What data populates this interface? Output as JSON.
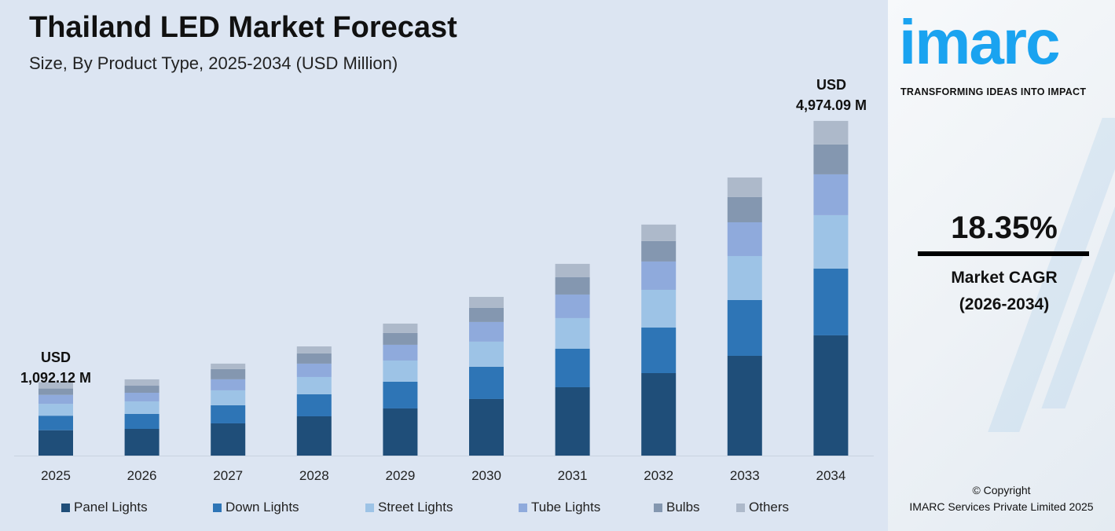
{
  "header": {
    "title": "Thailand LED Market Forecast",
    "subtitle": "Size, By Product Type, 2025-2034 (USD Million)"
  },
  "chart_data": {
    "type": "bar",
    "stacked": true,
    "title": "Thailand LED Market Forecast",
    "subtitle": "Size, By Product Type, 2025-2034 (USD Million)",
    "categories": [
      "2025",
      "2026",
      "2027",
      "2028",
      "2029",
      "2030",
      "2031",
      "2032",
      "2033",
      "2034"
    ],
    "series": [
      {
        "name": "Panel Lights",
        "color": "#1f4e79",
        "values": [
          377,
          397,
          479,
          584,
          701,
          841,
          1016,
          1226,
          1483,
          1787
        ]
      },
      {
        "name": "Down Lights",
        "color": "#2e75b6",
        "values": [
          216,
          222,
          269,
          327,
          397,
          479,
          572,
          677,
          829,
          993
        ]
      },
      {
        "name": "Street Lights",
        "color": "#9dc3e6",
        "values": [
          175,
          187,
          222,
          257,
          315,
          374,
          456,
          561,
          654,
          794
        ]
      },
      {
        "name": "Tube Lights",
        "color": "#8faadc",
        "values": [
          135,
          128,
          164,
          199,
          234,
          292,
          350,
          421,
          502,
          607
        ]
      },
      {
        "name": "Bulbs",
        "color": "#8497b0",
        "values": [
          94,
          105,
          152,
          152,
          175,
          210,
          257,
          304,
          374,
          444
        ]
      },
      {
        "name": "Others",
        "color": "#adb9ca",
        "values": [
          95,
          94,
          81,
          104,
          140,
          163,
          199,
          245,
          292,
          350
        ]
      }
    ],
    "annotations": [
      {
        "category": "2025",
        "line1": "USD",
        "line2": "1,092.12 M"
      },
      {
        "category": "2034",
        "line1": "USD",
        "line2": "4,974.09 M"
      }
    ],
    "grid": false,
    "legend": "bottom",
    "ylim": [
      0,
      4974.09
    ]
  },
  "brand": {
    "logo": "imarc",
    "tagline": "TRANSFORMING IDEAS INTO IMPACT",
    "accent": "#1aa3f0"
  },
  "cagr": {
    "value": "18.35%",
    "label": "Market CAGR",
    "period": "(2026-2034)"
  },
  "copyright": {
    "line1": "© Copyright",
    "line2": "IMARC Services Private Limited 2025"
  }
}
